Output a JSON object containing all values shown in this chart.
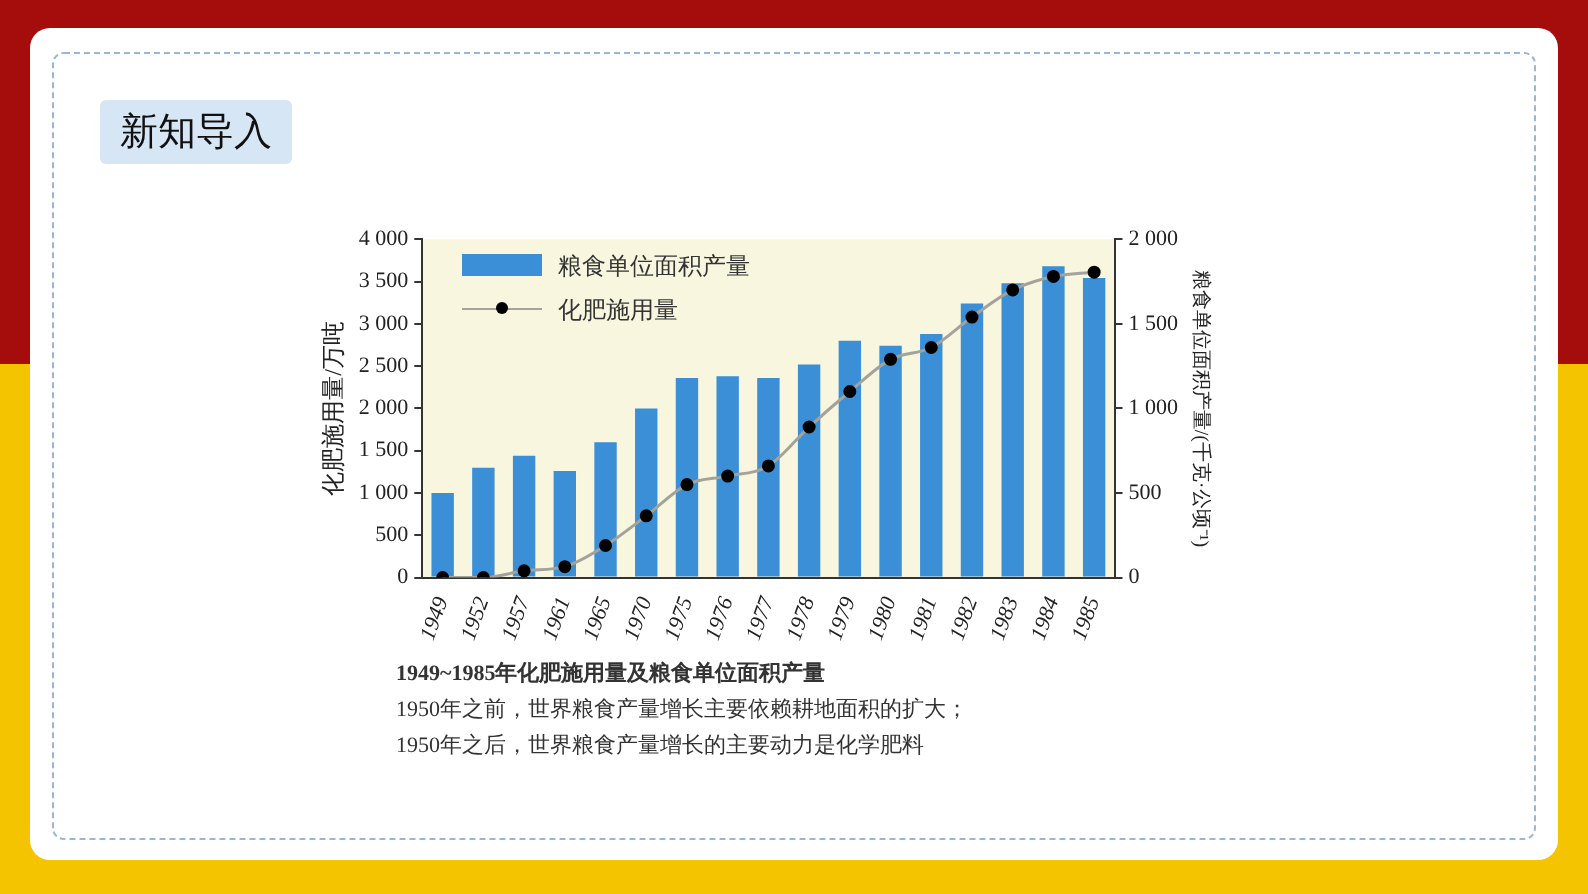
{
  "chart_data": {
    "type": "bar",
    "title": "1949~1985年化肥施用量及粮食单位面积产量",
    "ylabel": "化肥施用量/万吨",
    "y2label": "粮食单位面积产量/(千克·公顷⁻¹)",
    "categories": [
      "1949",
      "1952",
      "1957",
      "1961",
      "1965",
      "1970",
      "1975",
      "1976",
      "1977",
      "1978",
      "1979",
      "1980",
      "1981",
      "1982",
      "1983",
      "1984",
      "1985"
    ],
    "series": [
      {
        "name": "粮食单位面积产量",
        "axis": "y2",
        "color": "#3a8fd6",
        "values": [
          500,
          650,
          720,
          630,
          800,
          1000,
          1180,
          1190,
          1180,
          1260,
          1400,
          1370,
          1440,
          1620,
          1740,
          1840,
          1770
        ]
      },
      {
        "name": "化肥施用量",
        "type": "line",
        "color": "#a3a39b",
        "values": [
          0,
          0,
          80,
          130,
          380,
          730,
          1100,
          1200,
          1320,
          1780,
          2200,
          2580,
          2720,
          3080,
          3400,
          3560,
          3610
        ]
      }
    ],
    "marker": "circle",
    "ylim": [
      0,
      4000
    ],
    "yticks": [
      0,
      500,
      {
        "value": 1000,
        "label": "1 000"
      },
      {
        "value": 1500,
        "label": "1 500"
      },
      {
        "value": 2000,
        "label": "2 000"
      },
      {
        "value": 2500,
        "label": "2 500"
      },
      {
        "value": 3000,
        "label": "3 000"
      },
      {
        "value": 3500,
        "label": "3 500"
      },
      {
        "value": 4000,
        "label": "4 000"
      }
    ],
    "y2lim": [
      0,
      2000
    ],
    "y2ticks": [
      0,
      500,
      {
        "value": 1000,
        "label": "1 000"
      },
      {
        "value": 1500,
        "label": "1 500"
      },
      {
        "value": 2000,
        "label": "2 000"
      }
    ],
    "legend": "top left",
    "grid": false,
    "annotations": [
      "新知导入",
      "1950年之前，世界粮食产量增长主要依赖耕地面积的扩大；",
      "1950年之后，世界粮食产量增长的主要动力是化学肥料"
    ]
  }
}
